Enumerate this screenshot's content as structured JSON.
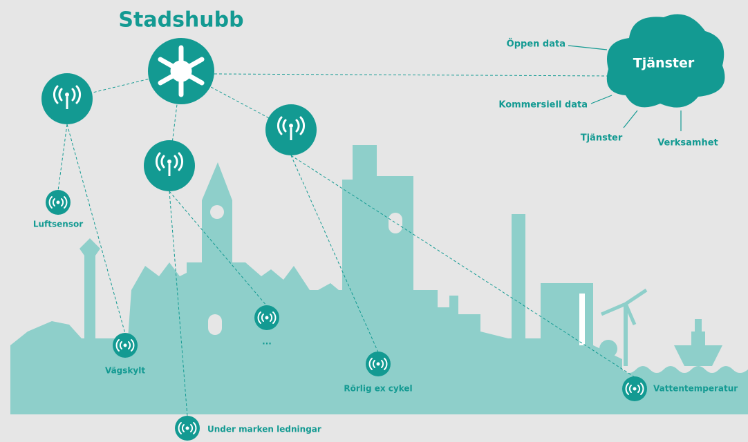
{
  "title": "Stadshubb",
  "cloud": {
    "label": "Tjänster",
    "inputs": [
      "Öppen data",
      "Kommersiell data",
      "Tjänster",
      "Verksamhet"
    ]
  },
  "sensors": [
    "Luftsensor",
    "Vägskylt",
    "...",
    "Under marken ledningar",
    "Rörlig ex cykel",
    "Vattentemperatur"
  ]
}
